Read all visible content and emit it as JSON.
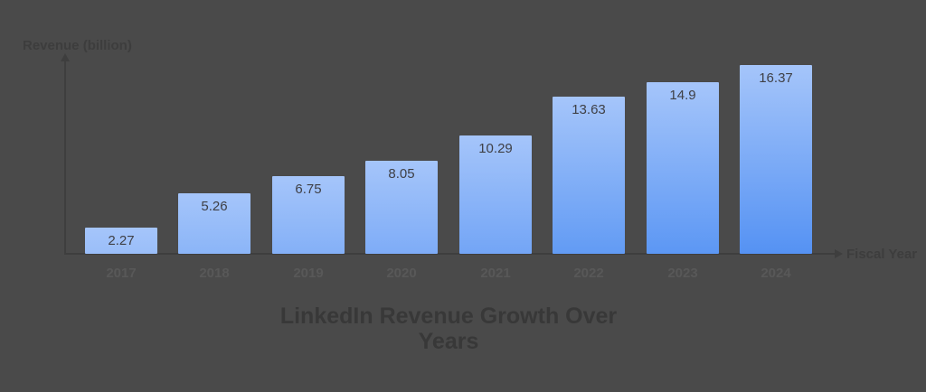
{
  "page": {
    "background_color": "#4a4a4a"
  },
  "chart_data": {
    "type": "bar",
    "title": "LinkedIn Revenue Growth Over Years",
    "xlabel": "Fiscal Year",
    "ylabel": "Revenue (billion)",
    "categories": [
      "2017",
      "2018",
      "2019",
      "2020",
      "2021",
      "2022",
      "2023",
      "2024"
    ],
    "values": [
      2.27,
      5.26,
      6.75,
      8.05,
      10.29,
      13.63,
      14.9,
      16.37
    ],
    "value_labels": [
      "2.27",
      "5.26",
      "6.75",
      "8.05",
      "10.29",
      "13.63",
      "14.9",
      "16.37"
    ],
    "ylim": [
      0,
      16.37
    ],
    "grid": false,
    "legend": "none",
    "colors": {
      "background": "#4a4a4a",
      "bar_top": "#a5c5fa",
      "bar_bottom_max": "#5592f3",
      "axis": "#3e3e3e",
      "axis_label": "#3d3d3d",
      "tick_label": "#585858",
      "value_label": "#3f4046",
      "title": "#383838"
    }
  }
}
